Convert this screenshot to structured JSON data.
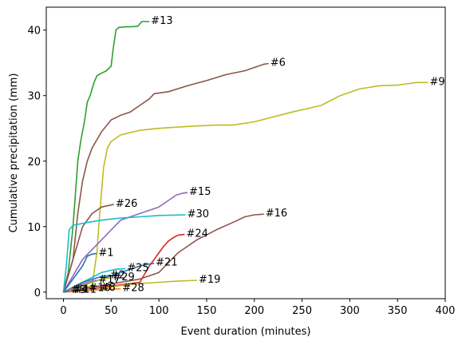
{
  "chart_data": {
    "type": "line",
    "xlabel": "Event duration (minutes)",
    "ylabel": "Cumulative precipitation (mm)",
    "xlim": [
      -18,
      400
    ],
    "ylim": [
      -1,
      43.5
    ],
    "xticks": [
      0,
      50,
      100,
      150,
      200,
      250,
      300,
      350,
      400
    ],
    "yticks": [
      0,
      10,
      20,
      30,
      40
    ],
    "grid": false,
    "series": [
      {
        "name": "#13",
        "color": "#2ca02c",
        "x": [
          0,
          5,
          10,
          15,
          18,
          22,
          25,
          28,
          32,
          35,
          38,
          45,
          50,
          52,
          55,
          58,
          65,
          70,
          78,
          82,
          90
        ],
        "y": [
          0,
          3,
          10,
          20,
          23,
          26,
          29,
          30,
          32,
          33,
          33.3,
          33.8,
          34.5,
          37,
          40,
          40.4,
          40.5,
          40.5,
          40.6,
          41.3,
          41.3
        ]
      },
      {
        "name": "#6",
        "color": "#8c564b",
        "x": [
          0,
          10,
          15,
          20,
          25,
          30,
          40,
          50,
          60,
          70,
          80,
          90,
          95,
          110,
          130,
          150,
          170,
          190,
          210,
          215
        ],
        "y": [
          0,
          5,
          12,
          17,
          20,
          22,
          24.5,
          26.3,
          27,
          27.5,
          28.5,
          29.5,
          30.3,
          30.6,
          31.5,
          32.3,
          33.2,
          33.8,
          34.8,
          34.9
        ]
      },
      {
        "name": "#9",
        "color": "#bcbd22",
        "x": [
          0,
          20,
          30,
          35,
          38,
          42,
          46,
          50,
          60,
          80,
          100,
          130,
          160,
          178,
          200,
          240,
          270,
          290,
          310,
          330,
          350,
          370,
          382
        ],
        "y": [
          0,
          0.5,
          1,
          6,
          12,
          19,
          22,
          23,
          24,
          24.7,
          25,
          25.3,
          25.5,
          25.5,
          26,
          27.5,
          28.5,
          30,
          31,
          31.5,
          31.6,
          32,
          32
        ]
      },
      {
        "name": "#15",
        "color": "#9467bd",
        "x": [
          0,
          20,
          40,
          60,
          80,
          100,
          110,
          118,
          125,
          130
        ],
        "y": [
          0,
          5,
          8,
          11,
          12,
          13,
          14,
          14.8,
          15.1,
          15.2
        ]
      },
      {
        "name": "#26",
        "color": "#8c564b",
        "x": [
          0,
          10,
          20,
          30,
          40,
          50,
          53
        ],
        "y": [
          0,
          5,
          10,
          12,
          13,
          13.3,
          13.4
        ]
      },
      {
        "name": "#30",
        "color": "#17becf",
        "x": [
          0,
          3,
          6,
          10,
          20,
          40,
          60,
          80,
          100,
          128
        ],
        "y": [
          0,
          4,
          9.5,
          10.2,
          10.5,
          11,
          11.3,
          11.5,
          11.7,
          11.8
        ]
      },
      {
        "name": "#16",
        "color": "#8c564b",
        "x": [
          0,
          80,
          100,
          110,
          120,
          130,
          140,
          160,
          180,
          190,
          200,
          210
        ],
        "y": [
          0,
          2,
          3,
          4.5,
          6,
          7,
          8,
          9.5,
          10.8,
          11.5,
          11.8,
          11.9
        ]
      },
      {
        "name": "#24",
        "color": "#d62728",
        "x": [
          0,
          80,
          90,
          95,
          100,
          105,
          110,
          115,
          120,
          127
        ],
        "y": [
          0,
          1.5,
          4,
          5,
          6,
          7,
          7.8,
          8.3,
          8.7,
          8.8
        ]
      },
      {
        "name": "#1",
        "color": "#1f77b4",
        "x": [
          0,
          10,
          20,
          25,
          30,
          35
        ],
        "y": [
          0,
          2,
          4,
          5.5,
          5.8,
          5.9
        ]
      },
      {
        "name": "#21",
        "color": "#1f77b4",
        "x": [
          0,
          20,
          40,
          60,
          70,
          80,
          90,
          95
        ],
        "y": [
          0,
          1,
          2,
          3,
          3.5,
          4,
          4.3,
          4.4
        ]
      },
      {
        "name": "#25",
        "color": "#17becf",
        "x": [
          0,
          20,
          40,
          55,
          65
        ],
        "y": [
          0,
          1.5,
          3,
          3.5,
          3.6
        ]
      },
      {
        "name": "#2",
        "color": "#1f77b4",
        "x": [
          0,
          20,
          40,
          47
        ],
        "y": [
          0,
          1.5,
          2.4,
          2.5
        ]
      },
      {
        "name": "#29",
        "color": "#bcbd22",
        "x": [
          0,
          20,
          40,
          50
        ],
        "y": [
          0,
          1,
          2,
          2.2
        ]
      },
      {
        "name": "#17",
        "color": "#9467bd",
        "x": [
          0,
          15,
          30,
          35
        ],
        "y": [
          0,
          1,
          1.7,
          1.8
        ]
      },
      {
        "name": "#19",
        "color": "#bcbd22",
        "x": [
          0,
          20,
          40,
          60,
          80,
          100,
          120,
          140
        ],
        "y": [
          0,
          0.3,
          0.6,
          1,
          1.3,
          1.5,
          1.7,
          1.8
        ]
      },
      {
        "name": "#28",
        "color": "#ff7f0e",
        "x": [
          0,
          20,
          40,
          55,
          60
        ],
        "y": [
          0,
          0.2,
          0.4,
          0.5,
          0.5
        ]
      },
      {
        "name": "#8",
        "color": "#e377c2",
        "x": [
          0,
          15,
          30,
          37
        ],
        "y": [
          0,
          0.3,
          0.55,
          0.6
        ]
      },
      {
        "name": "#10",
        "color": "#7f7f7f",
        "x": [
          0,
          10,
          25
        ],
        "y": [
          0,
          0.3,
          0.5
        ]
      },
      {
        "name": "#11",
        "color": "#2ca02c",
        "x": [
          0,
          5,
          10
        ],
        "y": [
          0,
          0.2,
          0.3
        ]
      },
      {
        "name": "#4",
        "color": "#ff7f0e",
        "x": [
          0,
          5,
          8
        ],
        "y": [
          0,
          0.2,
          0.3
        ]
      },
      {
        "name": "#3",
        "color": "#1f77b4",
        "x": [
          0,
          3,
          6
        ],
        "y": [
          0,
          0.1,
          0.2
        ]
      }
    ]
  }
}
